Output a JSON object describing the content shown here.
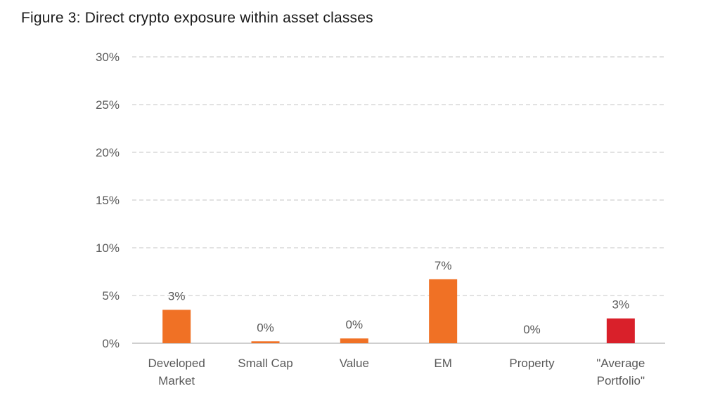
{
  "title": "Figure 3: Direct crypto exposure within asset classes",
  "chart_data": {
    "type": "bar",
    "title": "Figure 3: Direct crypto exposure within asset classes",
    "categories": [
      [
        "Developed",
        "Market"
      ],
      [
        "Small Cap"
      ],
      [
        "Value"
      ],
      [
        "EM"
      ],
      [
        "Property"
      ],
      [
        "\"Average",
        "Portfolio\""
      ]
    ],
    "values": [
      3.5,
      0.2,
      0.5,
      6.7,
      0.0,
      2.6
    ],
    "data_labels": [
      "3%",
      "0%",
      "0%",
      "7%",
      "0%",
      "3%"
    ],
    "bar_colors": [
      "#f07125",
      "#f07125",
      "#f07125",
      "#f07125",
      "#f07125",
      "#d9202a"
    ],
    "y_ticks": [
      0,
      5,
      10,
      15,
      20,
      25,
      30
    ],
    "y_tick_labels": [
      "0%",
      "5%",
      "10%",
      "15%",
      "20%",
      "25%",
      "30%"
    ],
    "ylim": [
      0,
      30
    ],
    "xlabel": "",
    "ylabel": "",
    "grid": true,
    "legend": "none",
    "colors": {
      "grid": "#d9d9d9",
      "axis": "#bfbfbf",
      "text": "#595959"
    }
  }
}
